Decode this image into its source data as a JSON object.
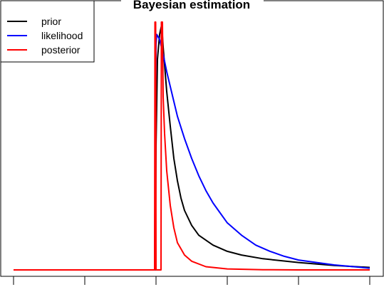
{
  "chart_data": {
    "type": "line",
    "title": "Bayesian estimation",
    "xlabel": "",
    "ylabel": "",
    "xlim": [
      0,
      5
    ],
    "ylim": [
      0,
      1
    ],
    "x_ticks": [
      0,
      1,
      2,
      3,
      4,
      5
    ],
    "axis_ticks_drawn": "bottom only, no tick labels",
    "legend": {
      "position": "top-left"
    },
    "series": [
      {
        "name": "prior",
        "color": "#000000",
        "points": [
          [
            0,
            0
          ],
          [
            1.99,
            0
          ],
          [
            2.0,
            0.5
          ],
          [
            2.02,
            0.85
          ],
          [
            2.05,
            0.95
          ],
          [
            2.08,
            0.99
          ],
          [
            2.1,
            0.9
          ],
          [
            2.15,
            0.72
          ],
          [
            2.2,
            0.58
          ],
          [
            2.25,
            0.45
          ],
          [
            2.3,
            0.36
          ],
          [
            2.35,
            0.29
          ],
          [
            2.4,
            0.24
          ],
          [
            2.5,
            0.18
          ],
          [
            2.6,
            0.14
          ],
          [
            2.8,
            0.1
          ],
          [
            3.0,
            0.075
          ],
          [
            3.2,
            0.06
          ],
          [
            3.5,
            0.045
          ],
          [
            4.0,
            0.03
          ],
          [
            4.5,
            0.018
          ],
          [
            5.0,
            0.01
          ]
        ]
      },
      {
        "name": "likelihood",
        "color": "#0000ff",
        "points": [
          [
            0,
            0
          ],
          [
            1.98,
            0
          ],
          [
            1.99,
            0.5
          ],
          [
            2.0,
            0.91
          ],
          [
            2.01,
            0.95
          ],
          [
            2.05,
            0.93
          ],
          [
            2.1,
            0.87
          ],
          [
            2.15,
            0.8
          ],
          [
            2.2,
            0.74
          ],
          [
            2.25,
            0.68
          ],
          [
            2.3,
            0.62
          ],
          [
            2.4,
            0.53
          ],
          [
            2.5,
            0.45
          ],
          [
            2.6,
            0.38
          ],
          [
            2.7,
            0.32
          ],
          [
            2.8,
            0.27
          ],
          [
            2.9,
            0.23
          ],
          [
            3.0,
            0.19
          ],
          [
            3.2,
            0.14
          ],
          [
            3.4,
            0.1
          ],
          [
            3.6,
            0.075
          ],
          [
            3.8,
            0.055
          ],
          [
            4.0,
            0.04
          ],
          [
            4.5,
            0.02
          ],
          [
            5.0,
            0.007
          ]
        ]
      },
      {
        "name": "posterior",
        "color": "#ff0000",
        "points": [
          [
            0,
            0
          ],
          [
            1.98,
            0
          ],
          [
            1.985,
            1.0
          ],
          [
            1.995,
            1.0
          ],
          [
            2.0,
            0
          ],
          [
            2.07,
            0
          ],
          [
            2.075,
            1.0
          ],
          [
            2.085,
            1.0
          ],
          [
            2.09,
            1.0
          ],
          [
            2.1,
            0.7
          ],
          [
            2.12,
            0.55
          ],
          [
            2.15,
            0.4
          ],
          [
            2.2,
            0.26
          ],
          [
            2.25,
            0.17
          ],
          [
            2.3,
            0.11
          ],
          [
            2.4,
            0.06
          ],
          [
            2.5,
            0.035
          ],
          [
            2.7,
            0.013
          ],
          [
            3.0,
            0.004
          ],
          [
            3.5,
            0.001
          ],
          [
            4.0,
            0
          ],
          [
            5.0,
            0
          ]
        ]
      }
    ]
  }
}
